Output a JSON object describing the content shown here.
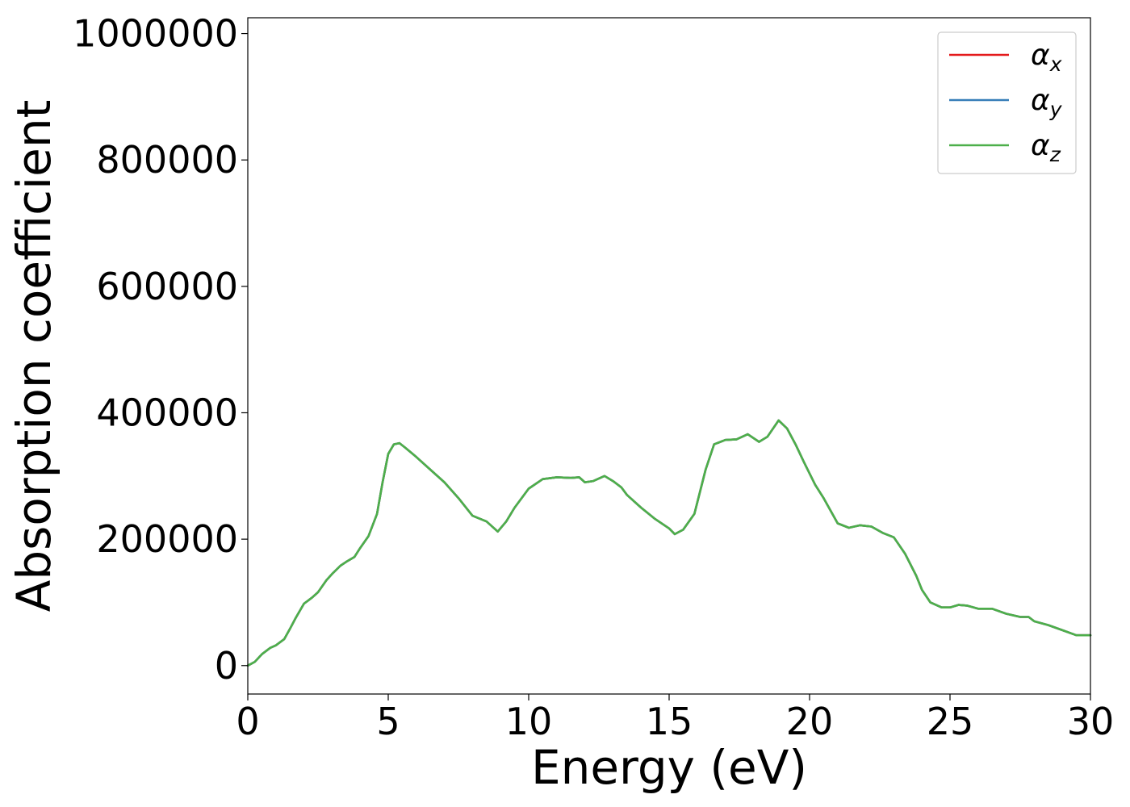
{
  "chart_data": {
    "type": "line",
    "title": "",
    "xlabel": "Energy (eV)",
    "ylabel": "Absorption coefficient",
    "xlim": [
      0,
      30
    ],
    "ylim": [
      -45000,
      1025000
    ],
    "xticks": [
      0,
      5,
      10,
      15,
      20,
      25,
      30
    ],
    "xtick_labels": [
      "0",
      "5",
      "10",
      "15",
      "20",
      "25",
      "30"
    ],
    "yticks": [
      0,
      200000,
      400000,
      600000,
      800000,
      1000000
    ],
    "ytick_labels": [
      "0",
      "200000",
      "400000",
      "600000",
      "800000",
      "1000000"
    ],
    "grid": false,
    "legend_position": "top-right",
    "series": [
      {
        "name": "α",
        "subscript": "x",
        "color": "#e41a1c"
      },
      {
        "name": "α",
        "subscript": "y",
        "color": "#377eb8"
      },
      {
        "name": "α",
        "subscript": "z",
        "color": "#4daf4a"
      }
    ],
    "x": [
      0,
      0.25,
      0.5,
      0.8,
      1.0,
      1.3,
      1.5,
      1.7,
      2.0,
      2.3,
      2.5,
      2.8,
      3.0,
      3.3,
      3.5,
      3.8,
      4.0,
      4.3,
      4.6,
      4.8,
      5.0,
      5.2,
      5.4,
      5.6,
      6.0,
      6.5,
      7.0,
      7.5,
      8.0,
      8.5,
      8.9,
      9.2,
      9.5,
      10.0,
      10.5,
      11.0,
      11.5,
      11.8,
      12.0,
      12.3,
      12.7,
      13.0,
      13.3,
      13.5,
      14.0,
      14.5,
      15.0,
      15.2,
      15.5,
      15.9,
      16.3,
      16.6,
      17.0,
      17.4,
      17.8,
      18.2,
      18.5,
      18.9,
      19.2,
      19.5,
      19.8,
      20.2,
      20.5,
      21.0,
      21.4,
      21.8,
      22.2,
      22.6,
      23.0,
      23.4,
      23.8,
      24.0,
      24.3,
      24.7,
      25.0,
      25.3,
      25.6,
      26.0,
      26.5,
      27.0,
      27.5,
      27.8,
      28.0,
      28.5,
      29.0,
      29.5,
      30.0
    ],
    "y": [
      0,
      6000,
      18000,
      28000,
      32000,
      42000,
      58000,
      75000,
      98000,
      108000,
      116000,
      135000,
      145000,
      158000,
      164000,
      172000,
      186000,
      205000,
      240000,
      290000,
      335000,
      350000,
      352000,
      345000,
      330000,
      310000,
      290000,
      265000,
      237000,
      228000,
      212000,
      228000,
      250000,
      280000,
      295000,
      298000,
      297000,
      298000,
      290000,
      292000,
      300000,
      292000,
      282000,
      270000,
      250000,
      232000,
      217000,
      208000,
      215000,
      240000,
      310000,
      350000,
      357000,
      358000,
      366000,
      354000,
      362000,
      388000,
      375000,
      350000,
      322000,
      286000,
      265000,
      225000,
      218000,
      222000,
      220000,
      210000,
      203000,
      177000,
      142000,
      120000,
      100000,
      92000,
      92000,
      96000,
      95000,
      90000,
      90000,
      82000,
      77000,
      77000,
      70000,
      64000,
      56000,
      48000,
      48000
    ]
  }
}
